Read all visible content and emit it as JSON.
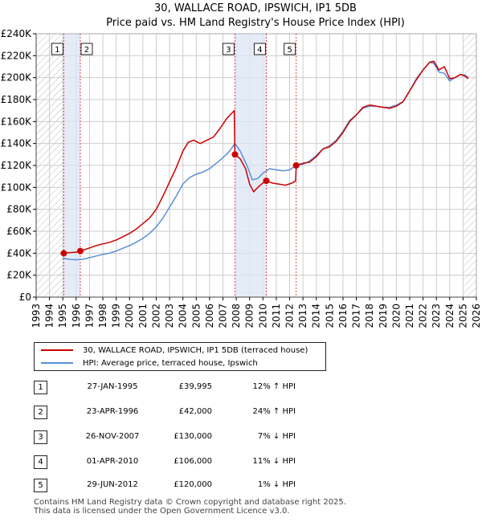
{
  "colors": {
    "property": "#cc0000",
    "hpi": "#5a8fd6",
    "band": "#dce6f5",
    "grid": "#cccccc",
    "vline": "#dd4444"
  },
  "title_line1": "30, WALLACE ROAD, IPSWICH, IP1 5DB",
  "title_line2": "Price paid vs. HM Land Registry's House Price Index (HPI)",
  "legend": {
    "property_label": "30, WALLACE ROAD, IPSWICH, IP1 5DB (terraced house)",
    "hpi_label": "HPI: Average price, terraced house, Ipswich"
  },
  "transactions": [
    {
      "num": "1",
      "date": "27-JAN-1995",
      "price": "£39,995",
      "hpi": "12% ↑ HPI"
    },
    {
      "num": "2",
      "date": "23-APR-1996",
      "price": "£42,000",
      "hpi": "24% ↑ HPI"
    },
    {
      "num": "3",
      "date": "26-NOV-2007",
      "price": "£130,000",
      "hpi": "7% ↓ HPI"
    },
    {
      "num": "4",
      "date": "01-APR-2010",
      "price": "£106,000",
      "hpi": "11% ↓ HPI"
    },
    {
      "num": "5",
      "date": "29-JUN-2012",
      "price": "£120,000",
      "hpi": "1% ↓ HPI"
    }
  ],
  "footer_line1": "Contains HM Land Registry data © Crown copyright and database right 2025.",
  "footer_line2": "This data is licensed under the Open Government Licence v3.0.",
  "chart_data": {
    "type": "line",
    "title": "30, WALLACE ROAD, IPSWICH, IP1 5DB — Price paid vs. HM Land Registry's House Price Index (HPI)",
    "xlim": [
      1993,
      2026
    ],
    "ylim": [
      0,
      240000
    ],
    "yticks": [
      0,
      20000,
      40000,
      60000,
      80000,
      100000,
      120000,
      140000,
      160000,
      180000,
      200000,
      220000,
      240000
    ],
    "ytick_labels": [
      "£0",
      "£20K",
      "£40K",
      "£60K",
      "£80K",
      "£100K",
      "£120K",
      "£140K",
      "£160K",
      "£180K",
      "£200K",
      "£220K",
      "£240K"
    ],
    "xticks": [
      1993,
      1994,
      1995,
      1996,
      1997,
      1998,
      1999,
      2000,
      2001,
      2002,
      2003,
      2004,
      2005,
      2006,
      2007,
      2008,
      2009,
      2010,
      2011,
      2012,
      2013,
      2014,
      2015,
      2016,
      2017,
      2018,
      2019,
      2020,
      2021,
      2022,
      2023,
      2024,
      2025,
      2026
    ],
    "xtick_labels": [
      "1993",
      "1994",
      "1995",
      "1996",
      "1997",
      "1998",
      "1999",
      "2000",
      "2001",
      "2002",
      "2003",
      "2004",
      "2005",
      "2006",
      "2007",
      "2008",
      "2009",
      "2010",
      "2011",
      "2012",
      "2013",
      "2014",
      "2015",
      "2016",
      "2017",
      "2018",
      "2019",
      "2020",
      "2021",
      "2022",
      "2023",
      "2024",
      "2025",
      "2026"
    ],
    "hatch_before": 1995.07,
    "hatch_after": 2025.0,
    "bands": [
      [
        1995.07,
        1996.31
      ],
      [
        2007.9,
        2010.25
      ]
    ],
    "sales": [
      {
        "label": "1",
        "x": 1995.07,
        "y": 39995
      },
      {
        "label": "2",
        "x": 1996.31,
        "y": 42000
      },
      {
        "label": "3",
        "x": 2007.9,
        "y": 130000
      },
      {
        "label": "4",
        "x": 2010.25,
        "y": 106000
      },
      {
        "label": "5",
        "x": 2012.49,
        "y": 120000
      }
    ],
    "series": [
      {
        "name": "30, WALLACE ROAD, IPSWICH, IP1 5DB (terraced house)",
        "points": [
          [
            1995.07,
            39995
          ],
          [
            1995.5,
            40500
          ],
          [
            1996.0,
            41000
          ],
          [
            1996.31,
            42000
          ],
          [
            1996.8,
            44000
          ],
          [
            1997.5,
            47000
          ],
          [
            1998.0,
            48500
          ],
          [
            1998.5,
            50000
          ],
          [
            1999.0,
            52000
          ],
          [
            1999.5,
            55000
          ],
          [
            2000.0,
            58000
          ],
          [
            2000.5,
            62000
          ],
          [
            2001.0,
            67000
          ],
          [
            2001.5,
            72000
          ],
          [
            2002.0,
            80000
          ],
          [
            2002.5,
            92000
          ],
          [
            2003.0,
            105000
          ],
          [
            2003.5,
            118000
          ],
          [
            2004.0,
            133000
          ],
          [
            2004.4,
            141000
          ],
          [
            2004.8,
            143000
          ],
          [
            2005.3,
            140000
          ],
          [
            2005.8,
            143000
          ],
          [
            2006.3,
            146000
          ],
          [
            2006.8,
            154000
          ],
          [
            2007.3,
            163000
          ],
          [
            2007.7,
            168000
          ],
          [
            2007.85,
            170000
          ],
          [
            2007.9,
            130000
          ],
          [
            2008.3,
            126000
          ],
          [
            2008.7,
            117000
          ],
          [
            2009.0,
            103000
          ],
          [
            2009.3,
            96000
          ],
          [
            2009.7,
            101000
          ],
          [
            2010.0,
            104000
          ],
          [
            2010.25,
            106000
          ],
          [
            2010.7,
            104000
          ],
          [
            2011.2,
            103000
          ],
          [
            2011.7,
            102000
          ],
          [
            2012.2,
            104000
          ],
          [
            2012.45,
            106000
          ],
          [
            2012.49,
            120000
          ],
          [
            2013.0,
            122000
          ],
          [
            2013.5,
            123000
          ],
          [
            2014.0,
            128000
          ],
          [
            2014.5,
            135000
          ],
          [
            2015.0,
            137000
          ],
          [
            2015.5,
            142000
          ],
          [
            2016.0,
            150000
          ],
          [
            2016.5,
            160000
          ],
          [
            2017.0,
            166000
          ],
          [
            2017.5,
            173000
          ],
          [
            2018.0,
            175000
          ],
          [
            2018.5,
            174000
          ],
          [
            2019.0,
            173000
          ],
          [
            2019.5,
            172000
          ],
          [
            2020.0,
            174000
          ],
          [
            2020.5,
            178000
          ],
          [
            2021.0,
            188000
          ],
          [
            2021.5,
            198000
          ],
          [
            2022.0,
            207000
          ],
          [
            2022.5,
            214000
          ],
          [
            2022.8,
            215000
          ],
          [
            2023.2,
            207000
          ],
          [
            2023.6,
            210000
          ],
          [
            2024.0,
            199000
          ],
          [
            2024.4,
            200000
          ],
          [
            2024.8,
            203000
          ],
          [
            2025.2,
            201000
          ],
          [
            2025.4,
            199000
          ]
        ]
      },
      {
        "name": "HPI: Average price, terraced house, Ipswich",
        "points": [
          [
            1995.0,
            35500
          ],
          [
            1995.5,
            34500
          ],
          [
            1996.0,
            34000
          ],
          [
            1996.5,
            34500
          ],
          [
            1997.0,
            36000
          ],
          [
            1997.5,
            37500
          ],
          [
            1998.0,
            39000
          ],
          [
            1998.5,
            40000
          ],
          [
            1999.0,
            42000
          ],
          [
            1999.5,
            44500
          ],
          [
            2000.0,
            47000
          ],
          [
            2000.5,
            50000
          ],
          [
            2001.0,
            53500
          ],
          [
            2001.5,
            58000
          ],
          [
            2002.0,
            64000
          ],
          [
            2002.5,
            72000
          ],
          [
            2003.0,
            82000
          ],
          [
            2003.5,
            92000
          ],
          [
            2004.0,
            103000
          ],
          [
            2004.5,
            109000
          ],
          [
            2005.0,
            112000
          ],
          [
            2005.5,
            114000
          ],
          [
            2006.0,
            117000
          ],
          [
            2006.5,
            122000
          ],
          [
            2007.0,
            127000
          ],
          [
            2007.5,
            133000
          ],
          [
            2007.9,
            140000
          ],
          [
            2008.3,
            133000
          ],
          [
            2008.8,
            120000
          ],
          [
            2009.2,
            107000
          ],
          [
            2009.6,
            108000
          ],
          [
            2010.0,
            113000
          ],
          [
            2010.5,
            117000
          ],
          [
            2011.0,
            116000
          ],
          [
            2011.5,
            115000
          ],
          [
            2012.0,
            116000
          ],
          [
            2012.5,
            120000
          ],
          [
            2013.0,
            121000
          ],
          [
            2013.5,
            124000
          ],
          [
            2014.0,
            129000
          ],
          [
            2014.5,
            135000
          ],
          [
            2015.0,
            138000
          ],
          [
            2015.5,
            143000
          ],
          [
            2016.0,
            151000
          ],
          [
            2016.5,
            161000
          ],
          [
            2017.0,
            166000
          ],
          [
            2017.5,
            172000
          ],
          [
            2018.0,
            174000
          ],
          [
            2018.5,
            174000
          ],
          [
            2019.0,
            173000
          ],
          [
            2019.5,
            173000
          ],
          [
            2020.0,
            175000
          ],
          [
            2020.5,
            178000
          ],
          [
            2021.0,
            188000
          ],
          [
            2021.5,
            199000
          ],
          [
            2022.0,
            207000
          ],
          [
            2022.5,
            214000
          ],
          [
            2022.8,
            213000
          ],
          [
            2023.2,
            205000
          ],
          [
            2023.6,
            204000
          ],
          [
            2024.0,
            197000
          ],
          [
            2024.4,
            200000
          ],
          [
            2024.8,
            203000
          ],
          [
            2025.2,
            202000
          ],
          [
            2025.4,
            200000
          ]
        ]
      }
    ]
  }
}
